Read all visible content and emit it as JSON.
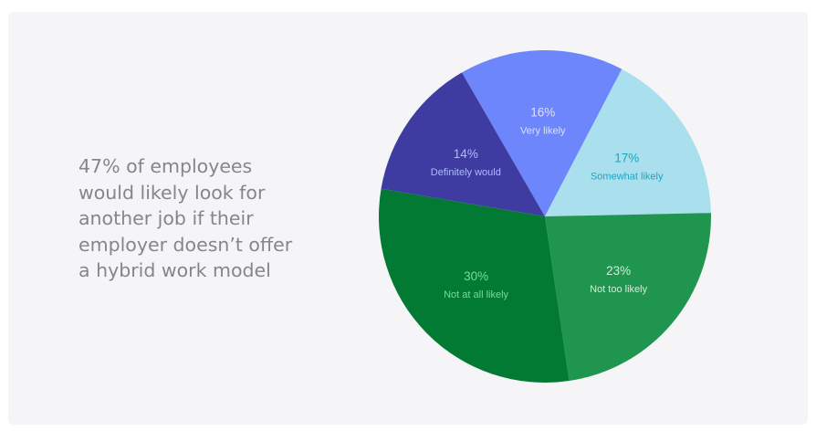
{
  "headline": "47% of employees\nwould likely look for\nanother job if their\nemployer doesn’t offer\na hybrid work model",
  "chart_data": {
    "type": "pie",
    "title": "",
    "slices": [
      {
        "label": "Very likely",
        "value": 16,
        "display": "16%",
        "color": "#6e86fb",
        "text_color": "#d9e0ff"
      },
      {
        "label": "Somewhat likely",
        "value": 17,
        "display": "17%",
        "color": "#aadfee",
        "text_color": "#1aa6c3"
      },
      {
        "label": "Not too likely",
        "value": 23,
        "display": "23%",
        "color": "#209550",
        "text_color": "#ccefd7"
      },
      {
        "label": "Not at all likely",
        "value": 30,
        "display": "30%",
        "color": "#037a34",
        "text_color": "#74dd94"
      },
      {
        "label": "Definitely would",
        "value": 14,
        "display": "14%",
        "color": "#3e3ca0",
        "text_color": "#aebbff"
      }
    ]
  }
}
